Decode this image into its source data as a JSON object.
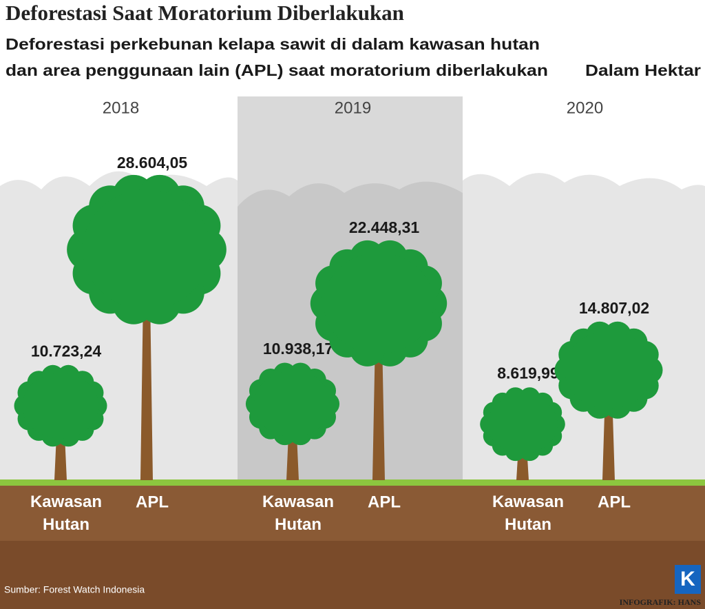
{
  "chart_data": {
    "type": "tree",
    "title": "Deforestasi Saat Moratorium Diberlakukan",
    "subtitle": [
      "Deforestasi perkebunan kelapa sawit di dalam kawasan hutan",
      "dan area penggunaan lain (APL) saat moratorium diberlakukan"
    ],
    "unit": "Dalam Hektar",
    "categories": [
      "2018",
      "2019",
      "2020"
    ],
    "series": [
      {
        "name": "Kawasan Hutan",
        "color": "#1e9a3c",
        "values": [
          10723.24,
          10938.17,
          8619.99
        ],
        "value_labels": [
          "10.723,24",
          "10.938,17",
          "8.619,99"
        ]
      },
      {
        "name": "APL",
        "color": "#1e9a3c",
        "values": [
          28604.05,
          22448.31,
          14807.02
        ],
        "value_labels": [
          "28.604,05",
          "22.448,31",
          "14.807,02"
        ]
      }
    ],
    "source": "Sumber:  Forest Watch Indonesia",
    "credit": "INFOGRAFIK: HANS",
    "logo": "K"
  }
}
